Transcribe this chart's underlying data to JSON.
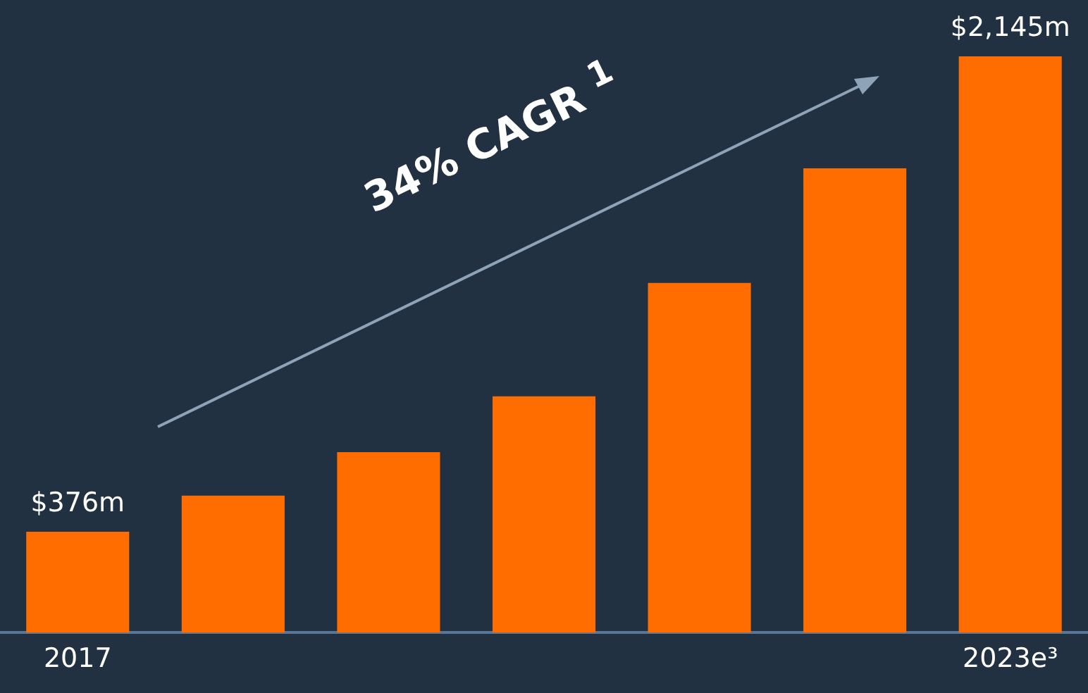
{
  "chart_data": {
    "type": "bar",
    "categories": [
      "2017",
      null,
      null,
      null,
      null,
      null,
      "2023e³"
    ],
    "values": [
      376,
      510,
      672,
      880,
      1302,
      1728,
      2145
    ],
    "value_labels": [
      "$376m",
      null,
      null,
      null,
      null,
      null,
      "$2,145m"
    ],
    "color": "#ff6d00",
    "annotations": [
      "34% CAGR $^{1}$"
    ]
  }
}
